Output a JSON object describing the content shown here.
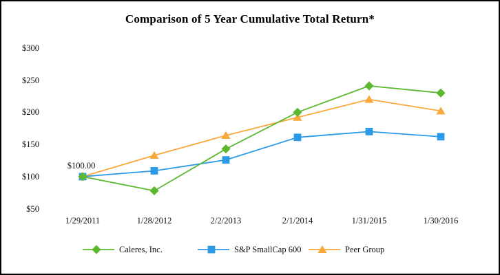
{
  "chart_data": {
    "type": "line",
    "title": "Comparison of 5 Year Cumulative Total Return*",
    "x": [
      "1/29/2011",
      "1/28/2012",
      "2/2/2013",
      "2/1/2014",
      "1/31/2015",
      "1/30/2016"
    ],
    "series": [
      {
        "name": "Caleres, Inc.",
        "marker": "diamond",
        "color": "#5CB82F",
        "values": [
          100,
          78,
          143,
          200,
          241,
          230
        ]
      },
      {
        "name": "S&P SmallCap 600",
        "marker": "square",
        "color": "#2B9BE8",
        "values": [
          100,
          109,
          126,
          161,
          170,
          162
        ]
      },
      {
        "name": "Peer Group",
        "marker": "triangle",
        "color": "#F9A83C",
        "values": [
          100,
          133,
          164,
          192,
          220,
          202
        ]
      }
    ],
    "y_ticks": [
      {
        "label": "$300",
        "value": 300
      },
      {
        "label": "$250",
        "value": 250
      },
      {
        "label": "$200",
        "value": 200
      },
      {
        "label": "$150",
        "value": 150
      },
      {
        "label": "$100",
        "value": 100
      },
      {
        "label": "$50",
        "value": 50
      }
    ],
    "ylim": [
      50,
      300
    ],
    "grid": false,
    "axis_lines": false,
    "legend_position": "bottom",
    "annotations": [
      {
        "text": "$100.00",
        "series_index": 0,
        "x_index": 0
      }
    ]
  }
}
